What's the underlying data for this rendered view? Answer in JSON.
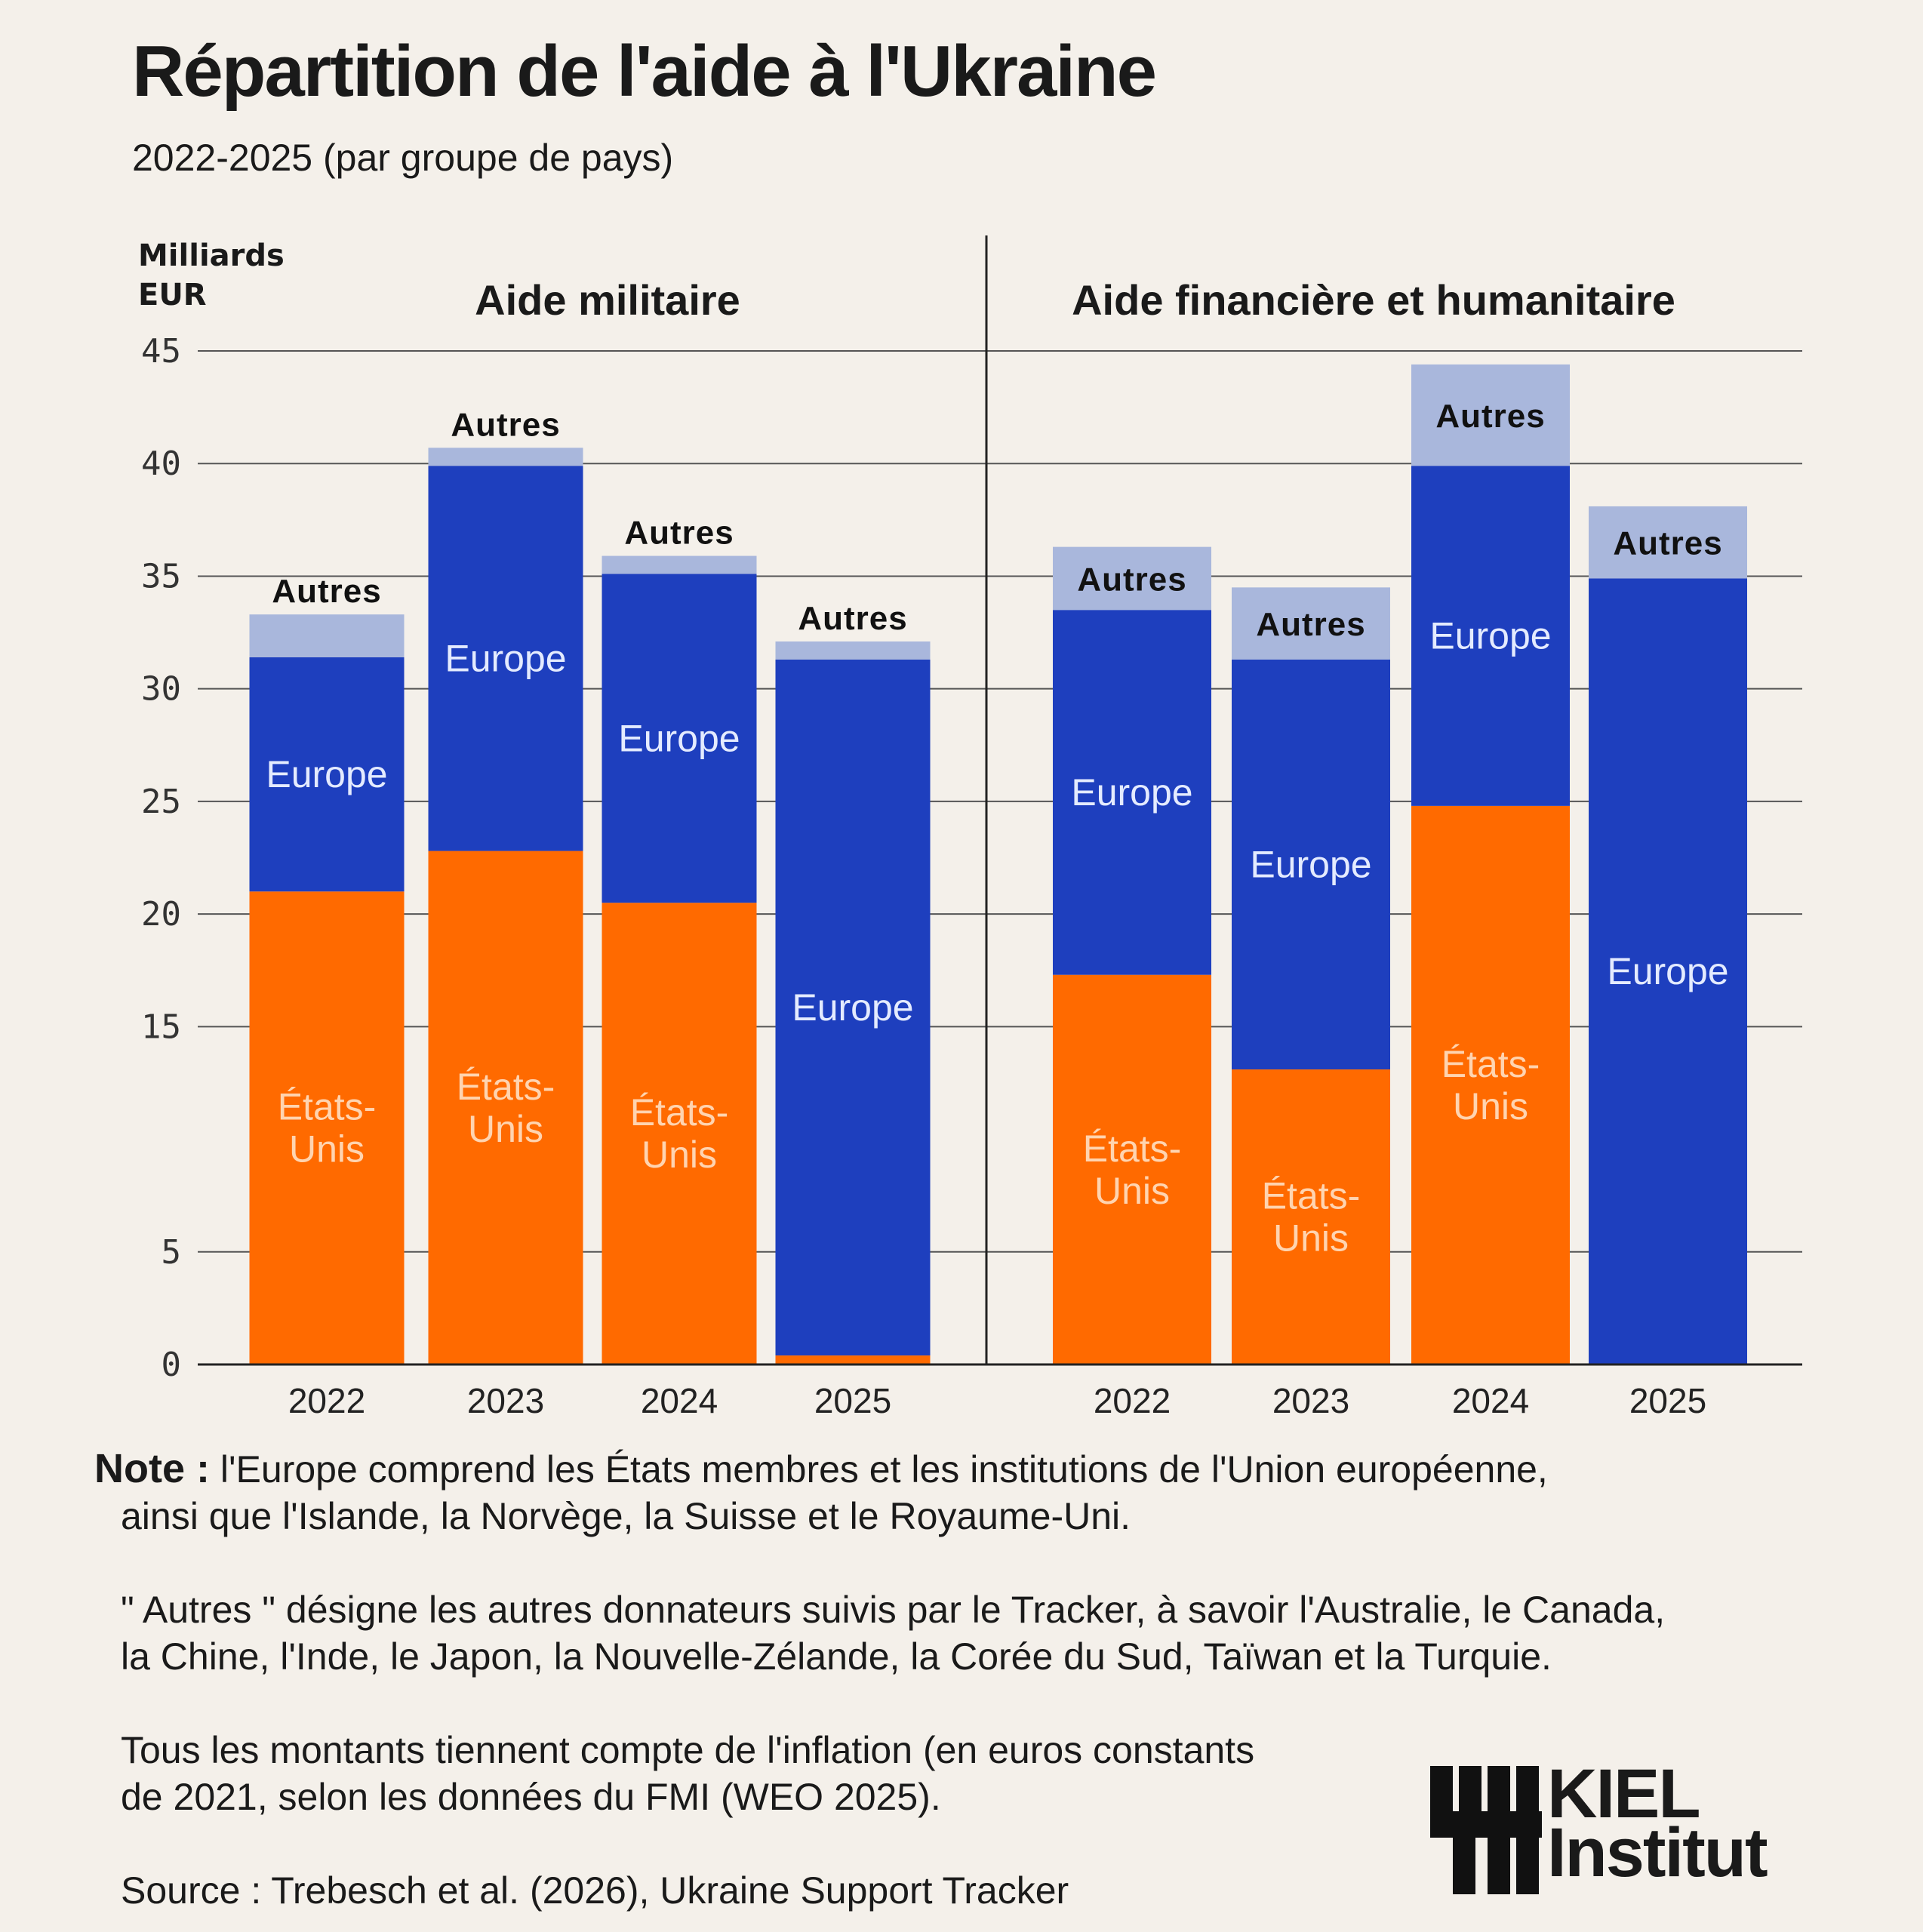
{
  "title": "Répartition de l'aide à l'Ukraine",
  "subtitle": "2022-2025 (par groupe de pays)",
  "y_unit": [
    "Milliards",
    "EUR"
  ],
  "colors": {
    "etats_unis": "#ff6a00",
    "europe": "#1e3fbe",
    "autres": "#a9b7dc",
    "background": "#f4f0ea"
  },
  "chart_data": [
    {
      "type": "bar",
      "stacked": true,
      "title": "Aide militaire",
      "ylabel": "Milliards EUR",
      "ylim": [
        0,
        45
      ],
      "yticks": [
        0,
        5,
        15,
        20,
        25,
        30,
        35,
        40,
        45
      ],
      "categories": [
        "2022",
        "2023",
        "2024",
        "2025"
      ],
      "series": [
        {
          "name": "États-Unis",
          "label": [
            "États-",
            "Unis"
          ],
          "values": [
            21.0,
            22.8,
            20.5,
            0.4
          ]
        },
        {
          "name": "Europe",
          "label": [
            "Europe"
          ],
          "values": [
            10.4,
            17.1,
            14.6,
            30.9
          ]
        },
        {
          "name": "Autres",
          "label": [
            "Autres"
          ],
          "values": [
            1.9,
            0.8,
            0.8,
            0.8
          ]
        }
      ]
    },
    {
      "type": "bar",
      "stacked": true,
      "title": "Aide financière et humanitaire",
      "ylabel": "Milliards EUR",
      "ylim": [
        0,
        45
      ],
      "yticks": [
        0,
        5,
        15,
        20,
        25,
        30,
        35,
        40,
        45
      ],
      "categories": [
        "2022",
        "2023",
        "2024",
        "2025"
      ],
      "series": [
        {
          "name": "États-Unis",
          "label": [
            "États-",
            "Unis"
          ],
          "values": [
            17.3,
            13.1,
            24.8,
            0
          ]
        },
        {
          "name": "Europe",
          "label": [
            "Europe"
          ],
          "values": [
            16.2,
            18.2,
            15.1,
            34.9
          ]
        },
        {
          "name": "Autres",
          "label": [
            "Autres"
          ],
          "values": [
            2.8,
            3.2,
            4.5,
            3.2
          ]
        }
      ]
    }
  ],
  "notes": {
    "label": "Note :",
    "line1": "l'Europe comprend les États membres et les institutions de l'Union européenne,",
    "line2": "ainsi que l'Islande, la Norvège, la Suisse et le Royaume-Uni.",
    "line3": "\" Autres \" désigne les autres donnateurs suivis par le Tracker, à savoir l'Australie, le Canada,",
    "line4": "la Chine, l'Inde, le Japon, la Nouvelle-Zélande, la Corée du Sud, Taïwan et la Turquie.",
    "line5": "Tous les montants tiennent compte de l'inflation (en euros constants",
    "line6": "de 2021, selon les données du FMI (WEO 2025).",
    "source": "Source : Trebesch et al. (2026), Ukraine Support Tracker"
  },
  "logo": {
    "line1": "KIEL",
    "line2": "Institut"
  }
}
